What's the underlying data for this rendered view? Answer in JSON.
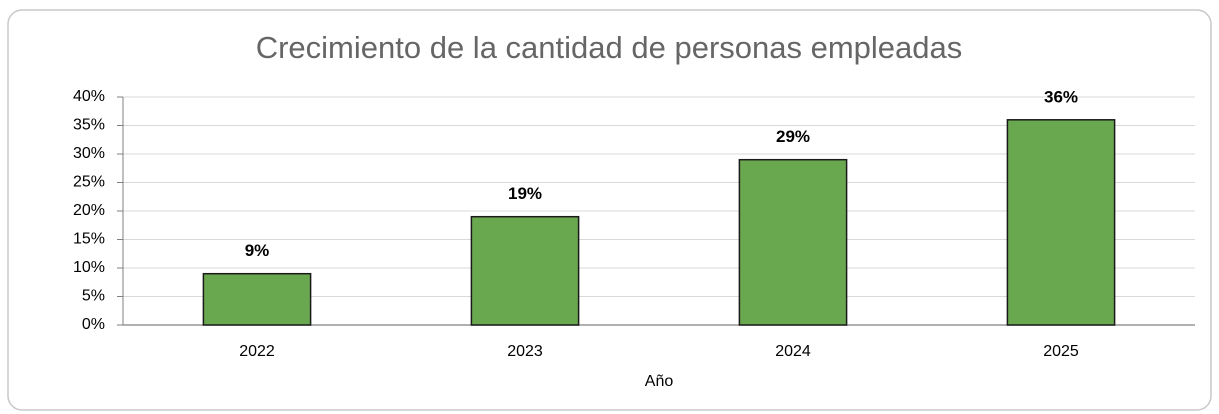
{
  "chart_data": {
    "type": "bar",
    "title": "Crecimiento de la cantidad de personas empleadas",
    "xlabel": "Año",
    "categories": [
      "2022",
      "2023",
      "2024",
      "2025"
    ],
    "values": [
      9,
      19,
      29,
      36
    ],
    "value_labels": [
      "9%",
      "19%",
      "29%",
      "36%"
    ],
    "color": "#6aa84f",
    "ylim": [
      0,
      40
    ],
    "yticks": [
      {
        "value": 0,
        "label": "0%"
      },
      {
        "value": 5,
        "label": "5%"
      },
      {
        "value": 10,
        "label": "10%"
      },
      {
        "value": 15,
        "label": "15%"
      },
      {
        "value": 20,
        "label": "20%"
      },
      {
        "value": 25,
        "label": "25%"
      },
      {
        "value": 30,
        "label": "30%"
      },
      {
        "value": 35,
        "label": "35%"
      },
      {
        "value": 40,
        "label": "40%"
      }
    ],
    "grid": true
  }
}
